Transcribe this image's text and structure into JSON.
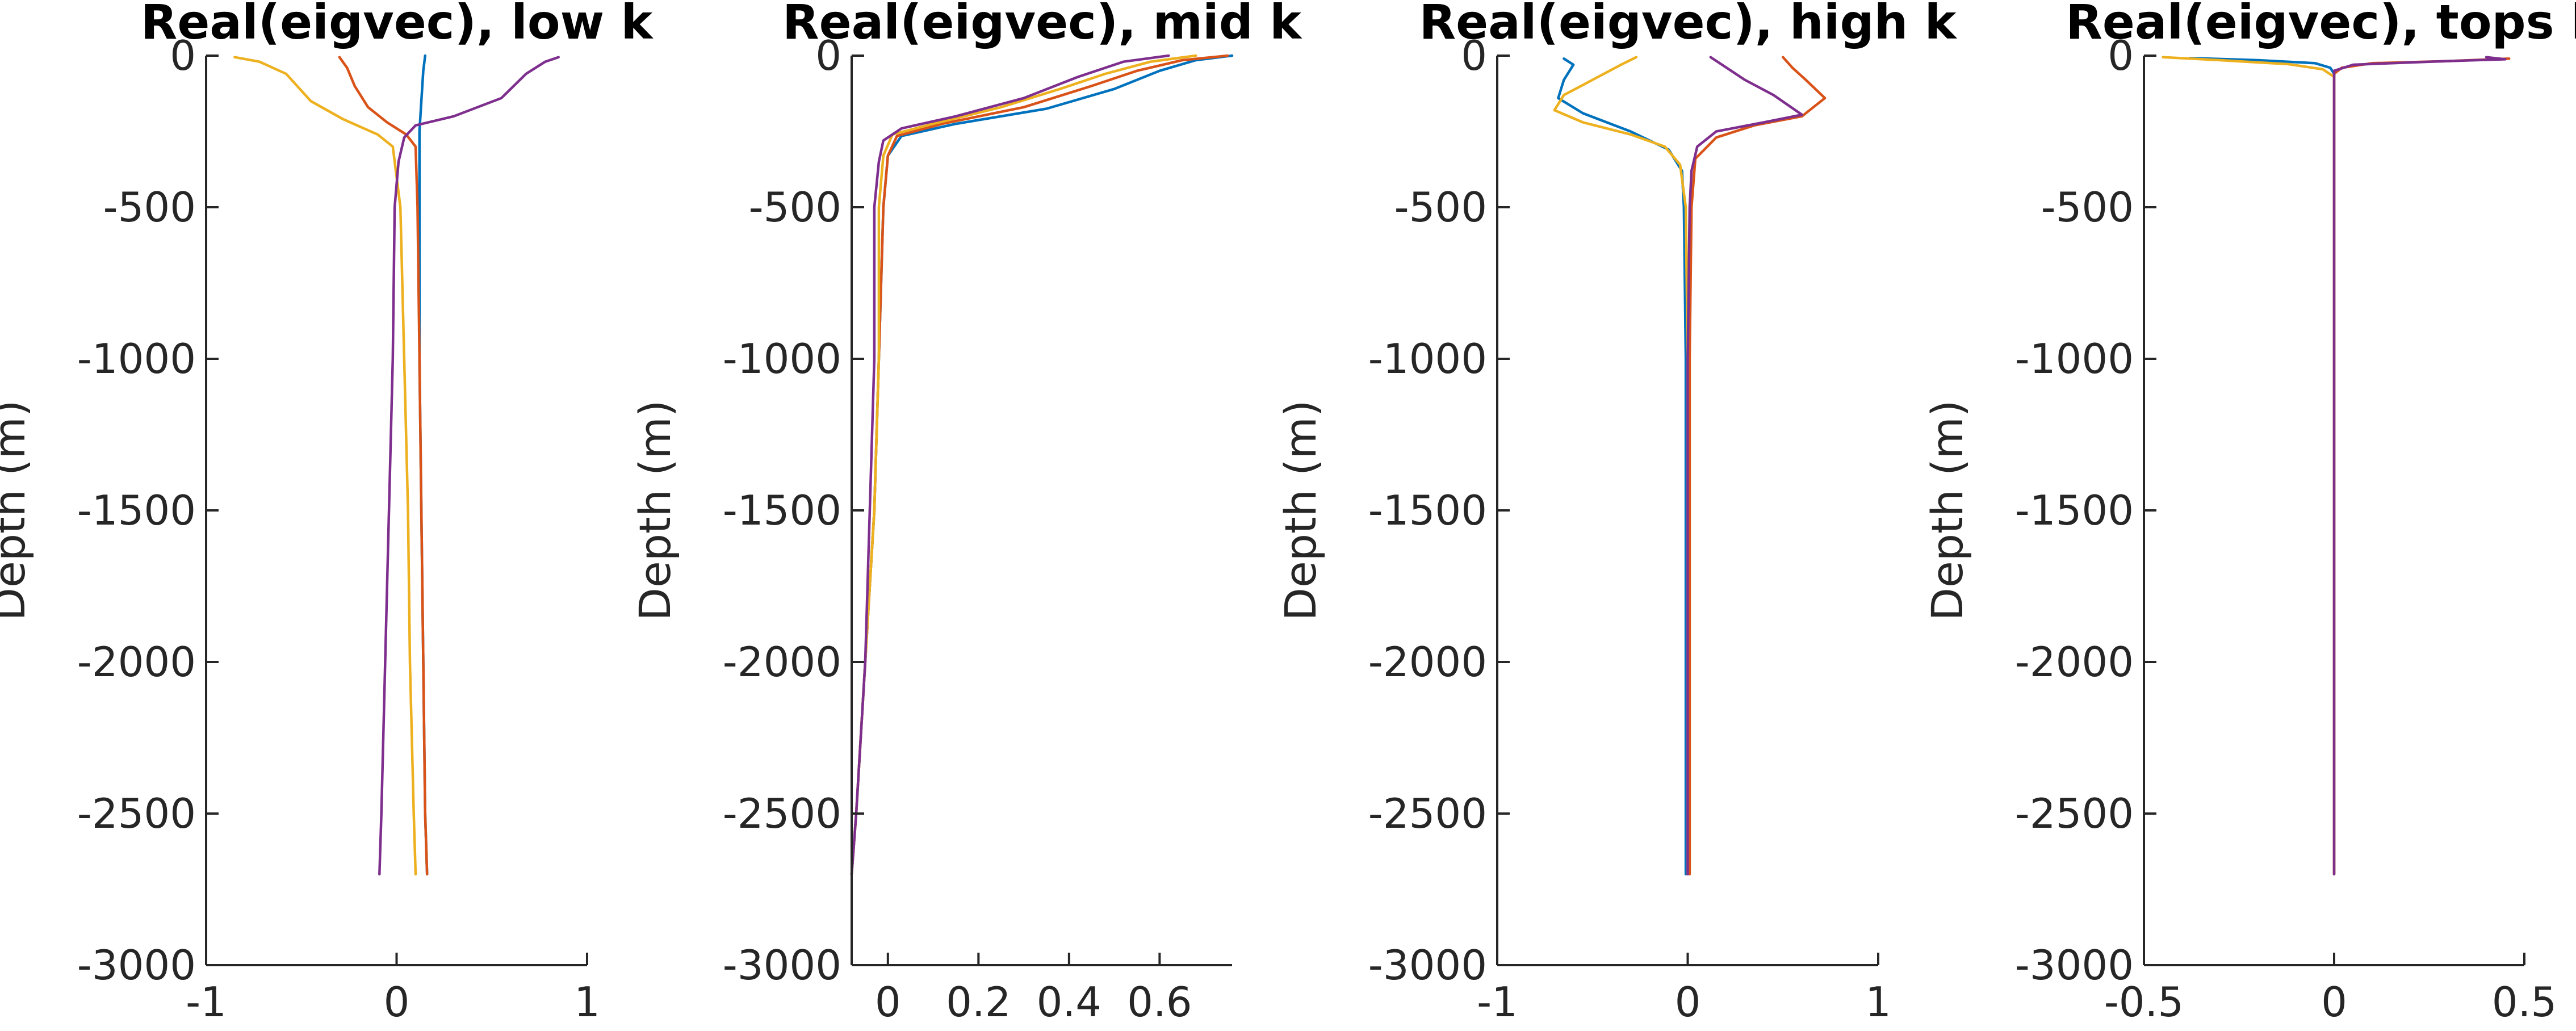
{
  "chart_data": [
    {
      "type": "line",
      "title": "Real(eigvec), low k",
      "ylabel": "Depth (m)",
      "xlabel": "",
      "xlim": [
        -1,
        1
      ],
      "ylim": [
        -3000,
        0
      ],
      "xticks": [
        -1,
        0,
        1
      ],
      "xtick_labels": [
        "-1",
        "0",
        "1"
      ],
      "yticks": [
        0,
        -500,
        -1000,
        -1500,
        -2000,
        -2500,
        -3000
      ],
      "ytick_labels": [
        "0",
        "-500",
        "-1000",
        "-1500",
        "-2000",
        "-2500",
        "-3000"
      ],
      "grid": false,
      "series": [
        {
          "color": "#0072BD",
          "points": [
            [
              0.15,
              0
            ],
            [
              0.14,
              -50
            ],
            [
              0.13,
              -150
            ],
            [
              0.12,
              -250
            ],
            [
              0.12,
              -500
            ],
            [
              0.12,
              -1000
            ],
            [
              0.13,
              -1500
            ],
            [
              0.14,
              -2000
            ],
            [
              0.15,
              -2500
            ],
            [
              0.16,
              -2700
            ]
          ]
        },
        {
          "color": "#D95319",
          "points": [
            [
              -0.3,
              -5
            ],
            [
              -0.26,
              -40
            ],
            [
              -0.22,
              -100
            ],
            [
              -0.15,
              -170
            ],
            [
              -0.05,
              -220
            ],
            [
              0.05,
              -260
            ],
            [
              0.1,
              -300
            ],
            [
              0.11,
              -500
            ],
            [
              0.12,
              -1000
            ],
            [
              0.13,
              -1500
            ],
            [
              0.14,
              -2000
            ],
            [
              0.15,
              -2500
            ],
            [
              0.16,
              -2700
            ]
          ]
        },
        {
          "color": "#EDB120",
          "points": [
            [
              -0.85,
              -5
            ],
            [
              -0.72,
              -20
            ],
            [
              -0.58,
              -60
            ],
            [
              -0.45,
              -150
            ],
            [
              -0.28,
              -210
            ],
            [
              -0.1,
              -260
            ],
            [
              -0.02,
              -300
            ],
            [
              0.02,
              -500
            ],
            [
              0.04,
              -1000
            ],
            [
              0.06,
              -1500
            ],
            [
              0.07,
              -2000
            ],
            [
              0.09,
              -2500
            ],
            [
              0.1,
              -2700
            ]
          ]
        },
        {
          "color": "#7E2F8E",
          "points": [
            [
              0.85,
              -5
            ],
            [
              0.78,
              -20
            ],
            [
              0.68,
              -60
            ],
            [
              0.55,
              -140
            ],
            [
              0.3,
              -200
            ],
            [
              0.1,
              -230
            ],
            [
              0.04,
              -270
            ],
            [
              0.01,
              -350
            ],
            [
              -0.01,
              -500
            ],
            [
              -0.02,
              -1000
            ],
            [
              -0.04,
              -1500
            ],
            [
              -0.06,
              -2000
            ],
            [
              -0.08,
              -2500
            ],
            [
              -0.09,
              -2700
            ]
          ]
        }
      ]
    },
    {
      "type": "line",
      "title": "Real(eigvec), mid k",
      "ylabel": "Depth (m)",
      "xlabel": "",
      "xlim": [
        -0.08,
        0.76
      ],
      "ylim": [
        -3000,
        0
      ],
      "xticks": [
        0,
        0.2,
        0.4,
        0.6
      ],
      "xtick_labels": [
        "0",
        "0.2",
        "0.4",
        "0.6"
      ],
      "yticks": [
        0,
        -500,
        -1000,
        -1500,
        -2000,
        -2500,
        -3000
      ],
      "ytick_labels": [
        "0",
        "-500",
        "-1000",
        "-1500",
        "-2000",
        "-2500",
        "-3000"
      ],
      "grid": false,
      "series": [
        {
          "color": "#0072BD",
          "points": [
            [
              0.76,
              0
            ],
            [
              0.68,
              -15
            ],
            [
              0.6,
              -50
            ],
            [
              0.5,
              -110
            ],
            [
              0.35,
              -175
            ],
            [
              0.15,
              -225
            ],
            [
              0.03,
              -265
            ],
            [
              0.0,
              -330
            ],
            [
              -0.01,
              -500
            ],
            [
              -0.02,
              -1000
            ],
            [
              -0.03,
              -1500
            ],
            [
              -0.05,
              -2000
            ],
            [
              -0.07,
              -2500
            ],
            [
              -0.08,
              -2700
            ]
          ]
        },
        {
          "color": "#D95319",
          "points": [
            [
              0.75,
              0
            ],
            [
              0.65,
              -15
            ],
            [
              0.55,
              -50
            ],
            [
              0.45,
              -100
            ],
            [
              0.3,
              -170
            ],
            [
              0.12,
              -225
            ],
            [
              0.02,
              -265
            ],
            [
              0.0,
              -330
            ],
            [
              -0.01,
              -500
            ],
            [
              -0.02,
              -1000
            ],
            [
              -0.03,
              -1500
            ],
            [
              -0.05,
              -2000
            ],
            [
              -0.07,
              -2500
            ],
            [
              -0.08,
              -2700
            ]
          ]
        },
        {
          "color": "#EDB120",
          "points": [
            [
              0.68,
              0
            ],
            [
              0.58,
              -20
            ],
            [
              0.48,
              -60
            ],
            [
              0.38,
              -110
            ],
            [
              0.25,
              -170
            ],
            [
              0.1,
              -225
            ],
            [
              0.01,
              -260
            ],
            [
              -0.01,
              -330
            ],
            [
              -0.02,
              -500
            ],
            [
              -0.02,
              -1000
            ],
            [
              -0.03,
              -1500
            ],
            [
              -0.05,
              -2000
            ],
            [
              -0.07,
              -2500
            ],
            [
              -0.08,
              -2700
            ]
          ]
        },
        {
          "color": "#7E2F8E",
          "points": [
            [
              0.62,
              0
            ],
            [
              0.52,
              -20
            ],
            [
              0.42,
              -70
            ],
            [
              0.3,
              -140
            ],
            [
              0.15,
              -200
            ],
            [
              0.03,
              -240
            ],
            [
              -0.01,
              -280
            ],
            [
              -0.02,
              -350
            ],
            [
              -0.03,
              -500
            ],
            [
              -0.03,
              -1000
            ],
            [
              -0.04,
              -1500
            ],
            [
              -0.05,
              -2000
            ],
            [
              -0.07,
              -2500
            ],
            [
              -0.08,
              -2700
            ]
          ]
        }
      ]
    },
    {
      "type": "line",
      "title": "Real(eigvec), high k",
      "ylabel": "Depth (m)",
      "xlabel": "",
      "xlim": [
        -1,
        1
      ],
      "ylim": [
        -3000,
        0
      ],
      "xticks": [
        -1,
        0,
        1
      ],
      "xtick_labels": [
        "-1",
        "0",
        "1"
      ],
      "yticks": [
        0,
        -500,
        -1000,
        -1500,
        -2000,
        -2500,
        -3000
      ],
      "ytick_labels": [
        "0",
        "-500",
        "-1000",
        "-1500",
        "-2000",
        "-2500",
        "-3000"
      ],
      "grid": false,
      "series": [
        {
          "color": "#0072BD",
          "points": [
            [
              -0.65,
              -10
            ],
            [
              -0.6,
              -30
            ],
            [
              -0.65,
              -80
            ],
            [
              -0.68,
              -140
            ],
            [
              -0.55,
              -190
            ],
            [
              -0.3,
              -250
            ],
            [
              -0.1,
              -310
            ],
            [
              -0.03,
              -380
            ],
            [
              -0.02,
              -500
            ],
            [
              -0.01,
              -1000
            ],
            [
              -0.01,
              -1500
            ],
            [
              -0.01,
              -2000
            ],
            [
              -0.01,
              -2500
            ],
            [
              -0.01,
              -2700
            ]
          ]
        },
        {
          "color": "#D95319",
          "points": [
            [
              0.5,
              -5
            ],
            [
              0.55,
              -40
            ],
            [
              0.62,
              -80
            ],
            [
              0.72,
              -140
            ],
            [
              0.6,
              -200
            ],
            [
              0.35,
              -230
            ],
            [
              0.15,
              -270
            ],
            [
              0.04,
              -340
            ],
            [
              0.02,
              -500
            ],
            [
              0.01,
              -1000
            ],
            [
              0.01,
              -1500
            ],
            [
              0.01,
              -2000
            ],
            [
              0.01,
              -2500
            ],
            [
              0.01,
              -2700
            ]
          ]
        },
        {
          "color": "#EDB120",
          "points": [
            [
              -0.27,
              -5
            ],
            [
              -0.35,
              -30
            ],
            [
              -0.5,
              -80
            ],
            [
              -0.65,
              -130
            ],
            [
              -0.7,
              -180
            ],
            [
              -0.55,
              -220
            ],
            [
              -0.3,
              -260
            ],
            [
              -0.12,
              -300
            ],
            [
              -0.04,
              -360
            ],
            [
              -0.01,
              -500
            ],
            [
              0.0,
              -1000
            ],
            [
              0.0,
              -1500
            ],
            [
              0.0,
              -2000
            ],
            [
              0.0,
              -2500
            ],
            [
              0.0,
              -2700
            ]
          ]
        },
        {
          "color": "#7E2F8E",
          "points": [
            [
              0.12,
              -5
            ],
            [
              0.18,
              -30
            ],
            [
              0.3,
              -80
            ],
            [
              0.45,
              -130
            ],
            [
              0.6,
              -195
            ],
            [
              0.4,
              -220
            ],
            [
              0.15,
              -250
            ],
            [
              0.05,
              -300
            ],
            [
              0.02,
              -380
            ],
            [
              0.01,
              -500
            ],
            [
              0.0,
              -1000
            ],
            [
              0.0,
              -1500
            ],
            [
              0.0,
              -2000
            ],
            [
              0.0,
              -2500
            ],
            [
              0.0,
              -2700
            ]
          ]
        }
      ]
    },
    {
      "type": "line",
      "title": "Real(eigvec), tops k",
      "ylabel": "Depth (m)",
      "xlabel": "",
      "xlim": [
        -0.5,
        0.5
      ],
      "ylim": [
        -3000,
        0
      ],
      "xticks": [
        -0.5,
        0,
        0.5
      ],
      "xtick_labels": [
        "-0.5",
        "0",
        "0.5"
      ],
      "yticks": [
        0,
        -500,
        -1000,
        -1500,
        -2000,
        -2500,
        -3000
      ],
      "ytick_labels": [
        "0",
        "-500",
        "-1000",
        "-1500",
        "-2000",
        "-2500",
        "-3000"
      ],
      "grid": false,
      "series": [
        {
          "color": "#0072BD",
          "points": [
            [
              -0.38,
              -8
            ],
            [
              -0.2,
              -15
            ],
            [
              -0.05,
              -25
            ],
            [
              -0.01,
              -40
            ],
            [
              0.0,
              -60
            ],
            [
              0.0,
              -200
            ],
            [
              0.0,
              -1000
            ],
            [
              0.0,
              -2700
            ]
          ]
        },
        {
          "color": "#D95319",
          "points": [
            [
              0.46,
              -10
            ],
            [
              0.3,
              -18
            ],
            [
              0.1,
              -25
            ],
            [
              0.02,
              -40
            ],
            [
              0.0,
              -60
            ],
            [
              0.0,
              -200
            ],
            [
              0.0,
              -1000
            ],
            [
              0.0,
              -2700
            ]
          ]
        },
        {
          "color": "#EDB120",
          "points": [
            [
              -0.45,
              -5
            ],
            [
              -0.3,
              -15
            ],
            [
              -0.12,
              -28
            ],
            [
              -0.03,
              -45
            ],
            [
              0.0,
              -70
            ],
            [
              0.0,
              -200
            ],
            [
              0.0,
              -1000
            ],
            [
              0.0,
              -2700
            ]
          ]
        },
        {
          "color": "#7E2F8E",
          "points": [
            [
              0.4,
              -5
            ],
            [
              0.45,
              -12
            ],
            [
              0.25,
              -20
            ],
            [
              0.05,
              -30
            ],
            [
              0.0,
              -50
            ],
            [
              0.0,
              -200
            ],
            [
              0.0,
              -1000
            ],
            [
              0.0,
              -2700
            ]
          ]
        }
      ]
    }
  ]
}
